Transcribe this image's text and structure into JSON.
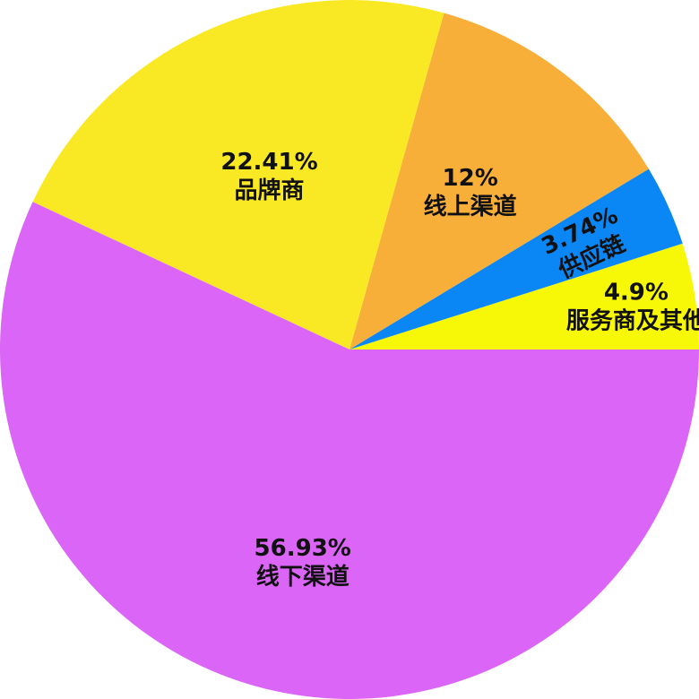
{
  "chart_data": {
    "type": "pie",
    "title": "",
    "start_angle_deg": 0,
    "direction": "counterclockwise",
    "slices": [
      {
        "label": "服务商及其他",
        "value": 4.9,
        "value_text": "4.9%",
        "color": "#F7F708"
      },
      {
        "label": "供应链",
        "value": 3.74,
        "value_text": "3.74%",
        "color": "#0A86F5"
      },
      {
        "label": "线上渠道",
        "value": 12,
        "value_text": "12%",
        "color": "#F8AF3A"
      },
      {
        "label": "品牌商",
        "value": 22.41,
        "value_text": "22.41%",
        "color": "#F9E925"
      },
      {
        "label": "线下渠道",
        "value": 56.93,
        "value_text": "56.93%",
        "color": "#DA65F6"
      }
    ]
  }
}
